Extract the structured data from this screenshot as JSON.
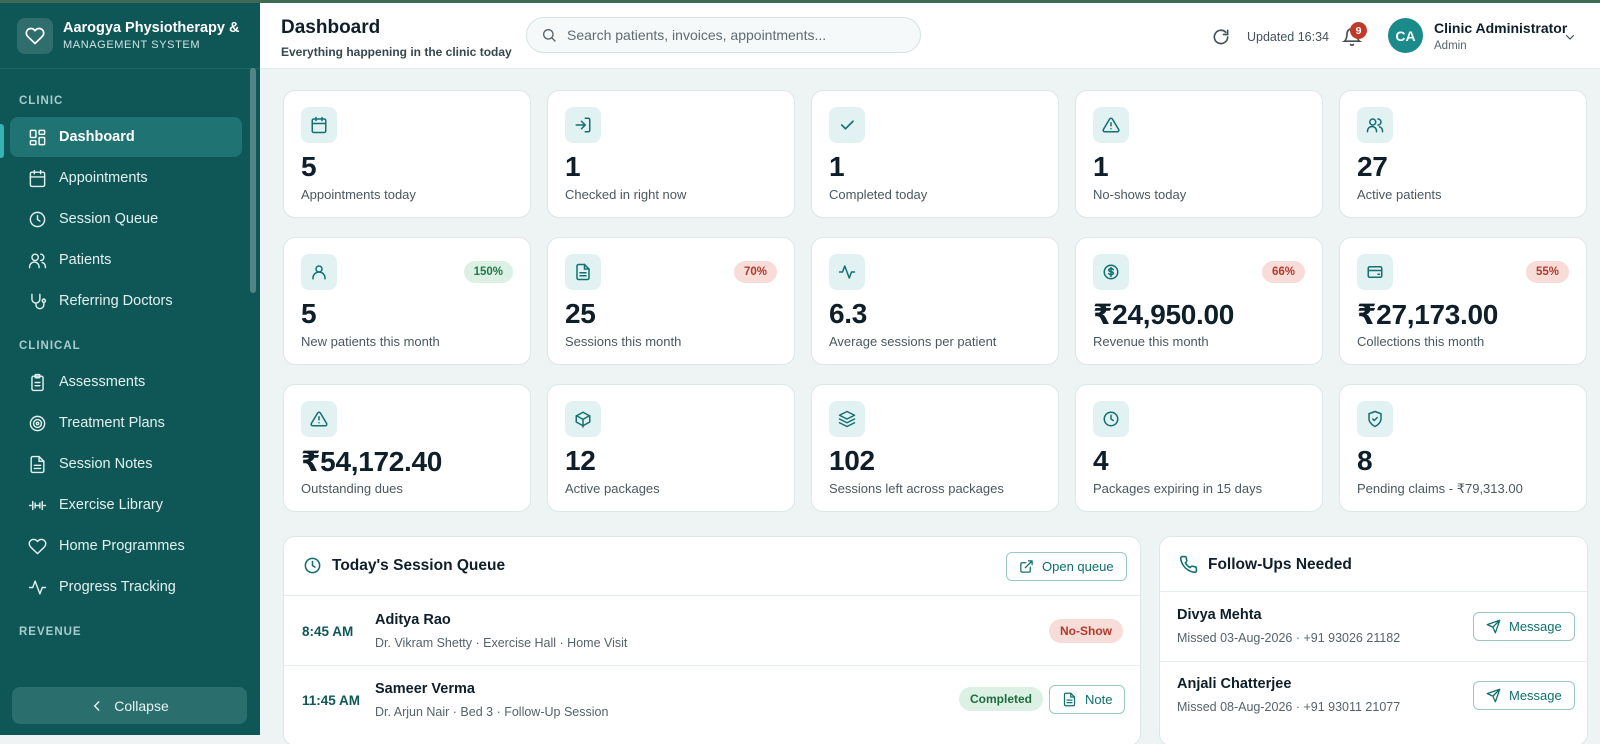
{
  "brand": {
    "name": "Aarogya Physiotherapy & I",
    "subtitle": "MANAGEMENT SYSTEM"
  },
  "sidebar": {
    "sections": [
      "CLINIC",
      "CLINICAL",
      "REVENUE"
    ],
    "items": [
      {
        "label": "Dashboard",
        "icon": "grid-icon",
        "active": true
      },
      {
        "label": "Appointments",
        "icon": "calendar-icon"
      },
      {
        "label": "Session Queue",
        "icon": "clock-icon"
      },
      {
        "label": "Patients",
        "icon": "users-icon"
      },
      {
        "label": "Referring Doctors",
        "icon": "stethoscope-icon"
      },
      {
        "label": "Assessments",
        "icon": "clipboard-icon"
      },
      {
        "label": "Treatment Plans",
        "icon": "target-icon"
      },
      {
        "label": "Session Notes",
        "icon": "file-text-icon"
      },
      {
        "label": "Exercise Library",
        "icon": "dumbbell-icon"
      },
      {
        "label": "Home Programmes",
        "icon": "heart-icon"
      },
      {
        "label": "Progress Tracking",
        "icon": "activity-icon"
      }
    ],
    "collapse_label": "Collapse"
  },
  "header": {
    "title": "Dashboard",
    "subtitle": "Everything happening in the clinic today",
    "search_placeholder": "Search patients, invoices, appointments...",
    "updated": "Updated 16:34",
    "notifications": "9",
    "user_initials": "CA",
    "user_name": "Clinic Administrator",
    "user_role": "Admin"
  },
  "stats": [
    {
      "value": "5",
      "label": "Appointments today",
      "icon": "calendar-icon"
    },
    {
      "value": "1",
      "label": "Checked in right now",
      "icon": "log-in-icon"
    },
    {
      "value": "1",
      "label": "Completed today",
      "icon": "check-icon"
    },
    {
      "value": "1",
      "label": "No-shows today",
      "icon": "alert-triangle-icon"
    },
    {
      "value": "27",
      "label": "Active patients",
      "icon": "users-icon"
    },
    {
      "value": "5",
      "label": "New patients this month",
      "icon": "user-icon",
      "badge": "150%",
      "trend": "up"
    },
    {
      "value": "25",
      "label": "Sessions this month",
      "icon": "file-text-icon",
      "badge": "70%",
      "trend": "down"
    },
    {
      "value": "6.3",
      "label": "Average sessions per patient",
      "icon": "activity-icon"
    },
    {
      "value": "₹24,950.00",
      "label": "Revenue this month",
      "icon": "dollar-circle-icon",
      "badge": "66%",
      "trend": "down"
    },
    {
      "value": "₹27,173.00",
      "label": "Collections this month",
      "icon": "wallet-icon",
      "badge": "55%",
      "trend": "down"
    },
    {
      "value": "₹54,172.40",
      "label": "Outstanding dues",
      "icon": "alert-triangle-icon"
    },
    {
      "value": "12",
      "label": "Active packages",
      "icon": "package-icon"
    },
    {
      "value": "102",
      "label": "Sessions left across packages",
      "icon": "layers-icon"
    },
    {
      "value": "4",
      "label": "Packages expiring in 15 days",
      "icon": "clock-icon"
    },
    {
      "value": "8",
      "label": "Pending claims - ₹79,313.00",
      "icon": "shield-check-icon"
    }
  ],
  "queue": {
    "title": "Today's Session Queue",
    "open_label": "Open queue",
    "rows": [
      {
        "time": "8:45 AM",
        "patient": "Aditya Rao",
        "meta": "Dr. Vikram Shetty · Exercise Hall · Home Visit",
        "status": "No-Show"
      },
      {
        "time": "11:45 AM",
        "patient": "Sameer Verma",
        "meta": "Dr. Arjun Nair · Bed 3 · Follow-Up Session",
        "status": "Completed",
        "action": "Note"
      }
    ]
  },
  "followups": {
    "title": "Follow-Ups Needed",
    "rows": [
      {
        "name": "Divya Mehta",
        "meta": "Missed 03-Aug-2026 · +91 93026 21182",
        "action": "Message"
      },
      {
        "name": "Anjali Chatterjee",
        "meta": "Missed 08-Aug-2026 · +91 93011 21077",
        "action": "Message"
      }
    ]
  },
  "colors": {
    "sidebar": "#0f5757",
    "accent": "#1b8a8a",
    "positive": "#1e7a46",
    "negative": "#b03a2e"
  }
}
